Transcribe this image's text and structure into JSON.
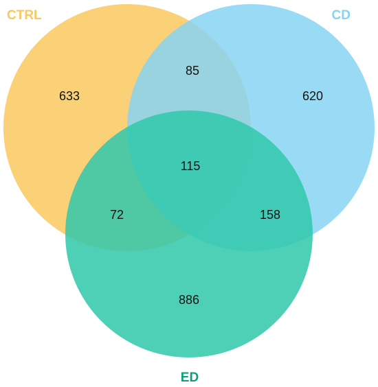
{
  "sets": [
    {
      "id": "ctrl",
      "label": "CTRL",
      "color": "#F9C95F"
    },
    {
      "id": "cd",
      "label": "CD",
      "color": "#87D3F2"
    },
    {
      "id": "ed",
      "label": "ED",
      "color": "#2FC8AA"
    }
  ],
  "regions": {
    "ctrl_only": "633",
    "cd_only": "620",
    "ed_only": "886",
    "ctrl_cd": "85",
    "ctrl_ed": "72",
    "cd_ed": "158",
    "ctrl_cd_ed": "115"
  }
}
